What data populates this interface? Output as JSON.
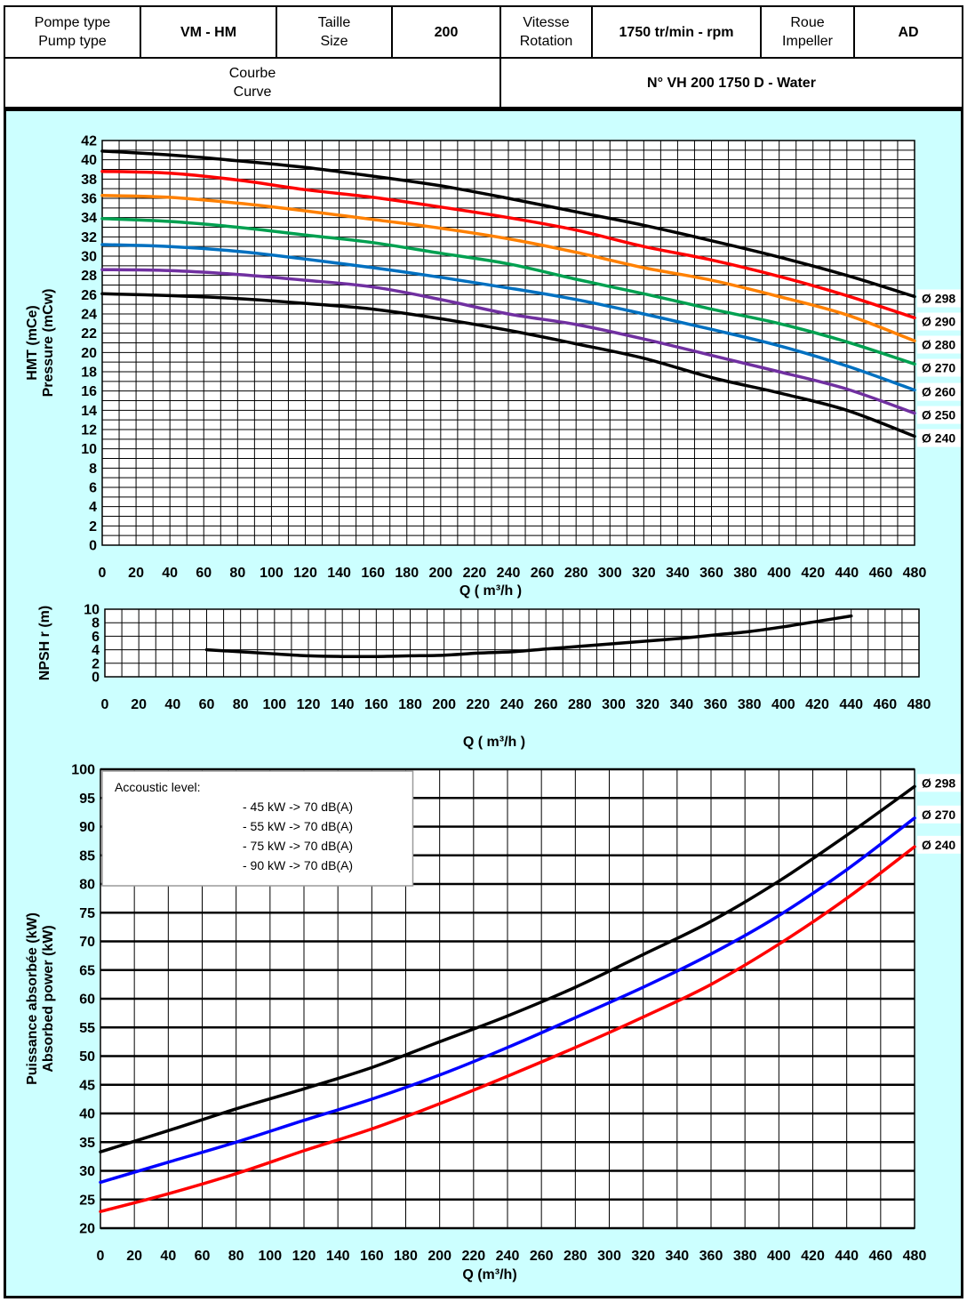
{
  "header": {
    "pump_type_label": [
      "Pompe type",
      "Pump type"
    ],
    "pump_type_value": "VM - HM",
    "size_label": [
      "Taille",
      "Size"
    ],
    "size_value": "200",
    "speed_label": [
      "Vitesse",
      "Rotation"
    ],
    "speed_value": "1750 tr/min - rpm",
    "impeller_label": [
      "Roue",
      "Impeller"
    ],
    "impeller_value": "AD",
    "curve_label": [
      "Courbe",
      "Curve"
    ],
    "curve_value": "N° VH 200 1750 D - Water"
  },
  "colors": {
    "panel_background": "#ccffff",
    "grid": "#000000"
  },
  "chart_data": [
    {
      "type": "line",
      "title": "",
      "xlabel": "Q ( m³/h )",
      "ylabel": [
        "HMT (mCe)",
        "Pressure (mCw)"
      ],
      "xlim": [
        0,
        480
      ],
      "ylim": [
        0,
        42
      ],
      "xticks": [
        0,
        20,
        40,
        60,
        80,
        100,
        120,
        140,
        160,
        180,
        200,
        220,
        240,
        260,
        280,
        300,
        320,
        340,
        360,
        380,
        400,
        420,
        440,
        460,
        480
      ],
      "yticks": [
        0,
        2,
        4,
        6,
        8,
        10,
        12,
        14,
        16,
        18,
        20,
        22,
        24,
        26,
        28,
        30,
        32,
        34,
        36,
        38,
        40,
        42
      ],
      "grid": true,
      "legend": "direct labels at right end of each curve",
      "x": [
        0,
        40,
        80,
        120,
        160,
        200,
        240,
        280,
        320,
        360,
        400,
        440,
        480
      ],
      "series": [
        {
          "name": "Ø 298",
          "color": "#000000",
          "values": [
            40.9,
            40.5,
            39.9,
            39.2,
            38.3,
            37.3,
            36.0,
            34.6,
            33.2,
            31.6,
            29.9,
            28.0,
            25.8
          ]
        },
        {
          "name": "Ø 290",
          "color": "#ff0000",
          "values": [
            38.8,
            38.6,
            37.9,
            36.9,
            36.1,
            35.1,
            34.0,
            32.7,
            31.0,
            29.6,
            27.9,
            25.9,
            23.6
          ]
        },
        {
          "name": "Ø 280",
          "color": "#ff8000",
          "values": [
            36.3,
            36.1,
            35.5,
            34.7,
            33.8,
            32.9,
            31.8,
            30.4,
            28.8,
            27.5,
            25.8,
            23.9,
            21.2
          ]
        },
        {
          "name": "Ø 270",
          "color": "#00a050",
          "values": [
            33.9,
            33.6,
            33.0,
            32.2,
            31.4,
            30.3,
            29.2,
            27.6,
            26.1,
            24.5,
            23.0,
            21.1,
            18.8
          ]
        },
        {
          "name": "Ø 260",
          "color": "#0070c0",
          "values": [
            31.2,
            31.0,
            30.5,
            29.7,
            28.8,
            27.8,
            26.7,
            25.5,
            24.0,
            22.4,
            20.7,
            18.6,
            16.1
          ]
        },
        {
          "name": "Ø 250",
          "color": "#7030a0",
          "values": [
            28.6,
            28.5,
            28.1,
            27.5,
            26.8,
            25.5,
            24.0,
            22.9,
            21.4,
            19.7,
            18.0,
            16.2,
            13.7
          ]
        },
        {
          "name": "Ø 240",
          "color": "#000000",
          "values": [
            26.1,
            25.9,
            25.6,
            25.1,
            24.5,
            23.5,
            22.3,
            20.9,
            19.4,
            17.4,
            15.8,
            14.0,
            11.3
          ]
        }
      ]
    },
    {
      "type": "line",
      "title": "",
      "xlabel": "Q ( m³/h )",
      "ylabel": "NPSH r (m)",
      "xlim": [
        0,
        480
      ],
      "ylim": [
        0,
        10
      ],
      "xticks": [
        0,
        20,
        40,
        60,
        80,
        100,
        120,
        140,
        160,
        180,
        200,
        220,
        240,
        260,
        280,
        300,
        320,
        340,
        360,
        380,
        400,
        420,
        440,
        460,
        480
      ],
      "yticks": [
        0,
        2,
        4,
        6,
        8,
        10
      ],
      "grid": true,
      "x": [
        60,
        80,
        100,
        120,
        140,
        160,
        180,
        200,
        220,
        240,
        260,
        280,
        300,
        320,
        340,
        360,
        380,
        400,
        420,
        440
      ],
      "series": [
        {
          "color": "#000000",
          "values": [
            4.0,
            3.7,
            3.4,
            3.1,
            3.0,
            3.0,
            3.1,
            3.2,
            3.5,
            3.7,
            4.1,
            4.5,
            4.9,
            5.3,
            5.7,
            6.2,
            6.7,
            7.4,
            8.2,
            9.0
          ]
        }
      ]
    },
    {
      "type": "line",
      "title": "",
      "xlabel": "Q (m³/h)",
      "ylabel": [
        "Puissance absorbée (kW)",
        "Absorbed power (kW)"
      ],
      "xlim": [
        0,
        480
      ],
      "ylim": [
        20,
        100
      ],
      "xticks": [
        0,
        20,
        40,
        60,
        80,
        100,
        120,
        140,
        160,
        180,
        200,
        220,
        240,
        260,
        280,
        300,
        320,
        340,
        360,
        380,
        400,
        420,
        440,
        460,
        480
      ],
      "yticks": [
        20,
        25,
        30,
        35,
        40,
        45,
        50,
        55,
        60,
        65,
        70,
        75,
        80,
        85,
        90,
        95,
        100
      ],
      "grid": true,
      "legend": "direct labels at right end of each curve",
      "x": [
        0,
        40,
        80,
        120,
        160,
        200,
        240,
        280,
        320,
        360,
        400,
        440,
        480
      ],
      "series": [
        {
          "name": "Ø 298",
          "color": "#000000",
          "values": [
            33.3,
            37.0,
            40.8,
            44.3,
            48.0,
            52.5,
            57.0,
            62.0,
            67.7,
            73.5,
            80.5,
            88.5,
            97.0
          ]
        },
        {
          "name": "Ø 270",
          "color": "#0000ff",
          "values": [
            28.0,
            31.5,
            35.0,
            38.8,
            42.5,
            46.7,
            51.5,
            56.7,
            62.0,
            67.8,
            74.5,
            82.5,
            91.5
          ]
        },
        {
          "name": "Ø 240",
          "color": "#ff0000",
          "values": [
            22.9,
            26.0,
            29.5,
            33.5,
            37.3,
            41.7,
            46.5,
            51.5,
            56.8,
            62.5,
            69.5,
            77.5,
            86.5
          ]
        }
      ],
      "annotation": {
        "title": "Accoustic level:",
        "lines": [
          "- 45 kW -> 70 dB(A)",
          "- 55 kW -> 70 dB(A)",
          "- 75 kW -> 70 dB(A)",
          "- 90 kW -> 70 dB(A)"
        ]
      }
    }
  ]
}
